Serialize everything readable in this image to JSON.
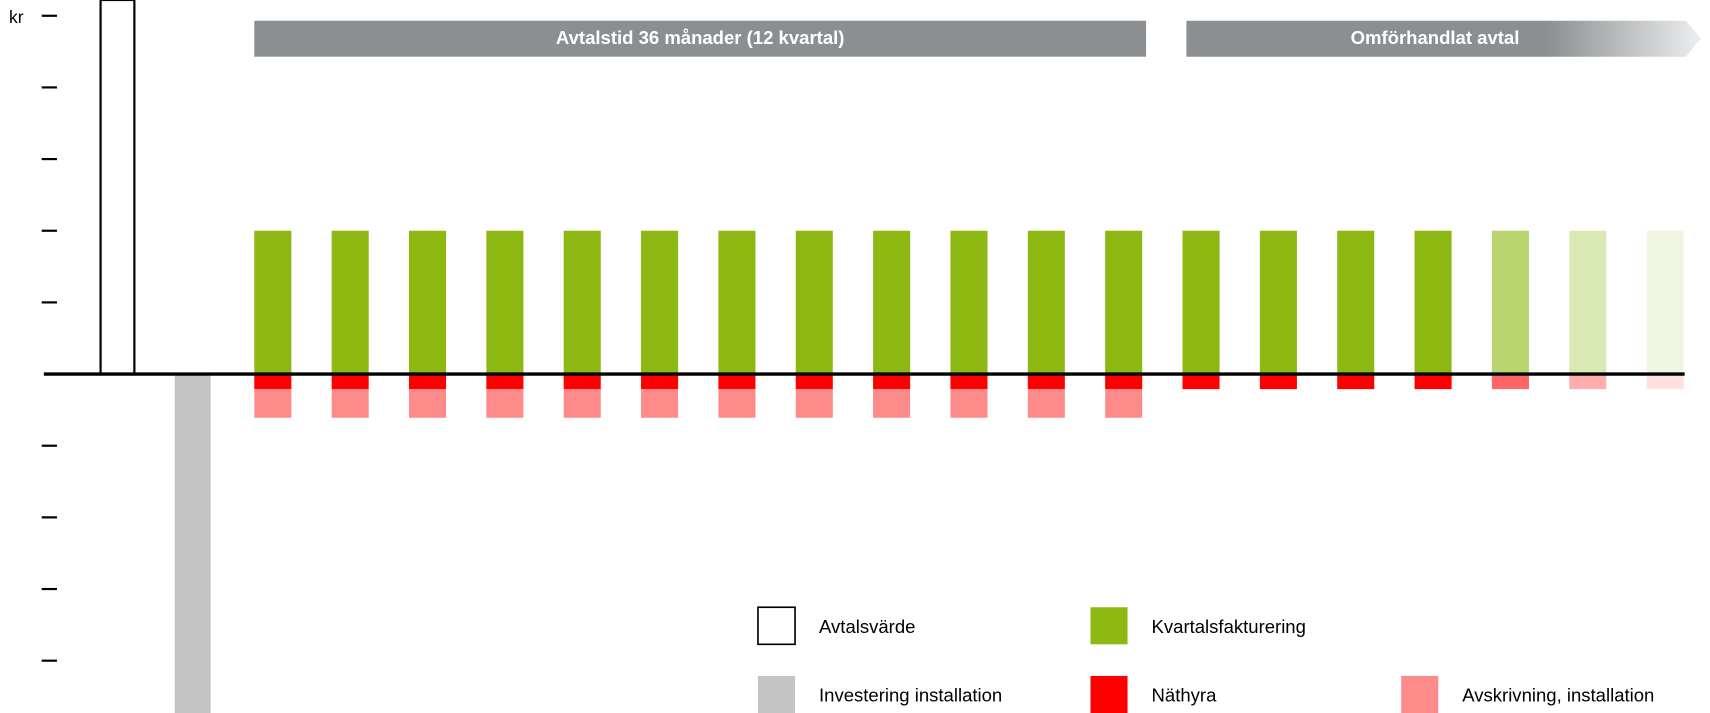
{
  "chart_data": {
    "type": "bar",
    "y_label": "kr",
    "annotations": [
      "Avtalstid 36 månader (12 kvartal)",
      "Omförhandlat avtal"
    ],
    "categories": [
      null,
      null,
      null,
      null,
      null,
      null,
      null,
      null,
      null,
      null,
      null,
      null,
      null,
      null,
      null,
      null,
      null,
      null,
      null,
      null,
      null
    ],
    "opacity": [
      1,
      1,
      1,
      1,
      1,
      1,
      1,
      1,
      1,
      1,
      1,
      1,
      1,
      1,
      1,
      1,
      1,
      1,
      0.6,
      0.32,
      0.12
    ],
    "series": [
      {
        "name": "Avtalsvärde",
        "color": "#ffffff",
        "values": [
          5.22,
          null,
          null,
          null,
          null,
          null,
          null,
          null,
          null,
          null,
          null,
          null,
          null,
          null,
          null,
          null,
          null,
          null,
          null,
          null,
          null
        ]
      },
      {
        "name": "Investering installation",
        "color": "#c4c4c4",
        "values": [
          null,
          -4.73,
          null,
          null,
          null,
          null,
          null,
          null,
          null,
          null,
          null,
          null,
          null,
          null,
          null,
          null,
          null,
          null,
          null,
          null,
          null
        ]
      },
      {
        "name": "Kvartalsfakturering",
        "color": "#8cb811",
        "values": [
          null,
          null,
          2,
          2,
          2,
          2,
          2,
          2,
          2,
          2,
          2,
          2,
          2,
          2,
          2,
          2,
          2,
          2,
          2,
          2,
          2
        ]
      },
      {
        "name": "Näthyra",
        "color": "#ff0000",
        "values": [
          null,
          null,
          -0.21,
          -0.21,
          -0.21,
          -0.21,
          -0.21,
          -0.21,
          -0.21,
          -0.21,
          -0.21,
          -0.21,
          -0.21,
          -0.21,
          -0.21,
          -0.21,
          -0.21,
          -0.21,
          -0.21,
          -0.21,
          -0.21
        ]
      },
      {
        "name": "Avskrivning, installation",
        "color": "#ff8a8a",
        "values": [
          null,
          null,
          -0.4,
          -0.4,
          -0.4,
          -0.4,
          -0.4,
          -0.4,
          -0.4,
          -0.4,
          -0.4,
          -0.4,
          -0.4,
          -0.4,
          null,
          null,
          null,
          null,
          null,
          null,
          null
        ]
      }
    ],
    "ylim": [
      -4.73,
      5.22
    ],
    "yticks": [
      -4,
      -3,
      -2,
      -1,
      1,
      2,
      3,
      4,
      5
    ]
  }
}
